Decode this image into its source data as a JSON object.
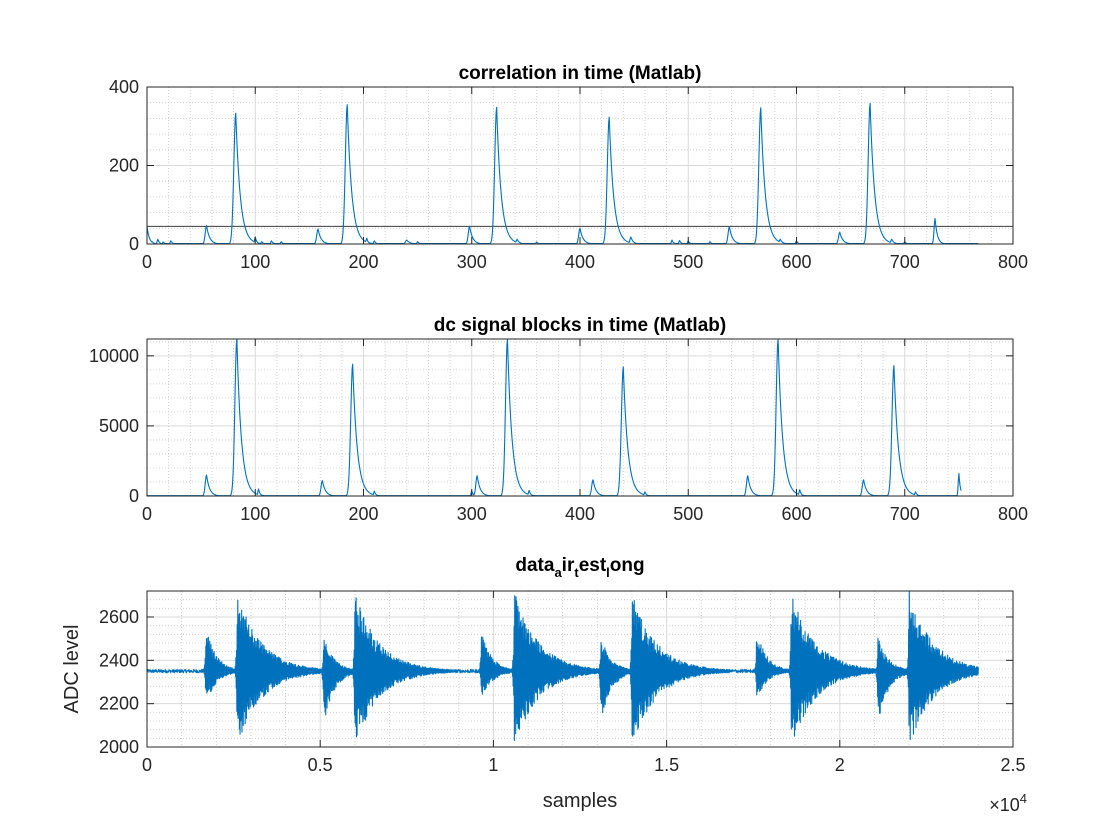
{
  "colors": {
    "line": "#0072bd",
    "axis": "#262626",
    "major_grid": "#d9d9d9",
    "minor_grid": "#c8c8c8",
    "threshold": "#3c3c3c"
  },
  "chart_data": [
    {
      "type": "line",
      "title": "correlation in time (Matlab)",
      "xlabel": "",
      "ylabel": "",
      "xlim": [
        0,
        800
      ],
      "ylim": [
        0,
        400
      ],
      "xticks": [
        0,
        100,
        200,
        300,
        400,
        500,
        600,
        700,
        800
      ],
      "yticks": [
        0,
        200,
        400
      ],
      "xtick_labels": [
        "0",
        "100",
        "200",
        "300",
        "400",
        "500",
        "600",
        "700",
        "800"
      ],
      "ytick_labels": [
        "0",
        "200",
        "400"
      ],
      "grid": true,
      "minor_grid": true,
      "threshold": 45,
      "series": [
        {
          "values_end": 768,
          "baseline": 1,
          "peaks": [
            {
              "x": 0,
              "y": 45,
              "w": 1.5
            },
            {
              "x": 5,
              "y": 6,
              "w": 1
            },
            {
              "x": 10,
              "y": 12,
              "w": 1
            },
            {
              "x": 15,
              "y": 5,
              "w": 1
            },
            {
              "x": 22,
              "y": 8,
              "w": 1
            },
            {
              "x": 55,
              "y": 47,
              "w": 2
            },
            {
              "x": 82,
              "y": 333,
              "w": 3
            },
            {
              "x": 100,
              "y": 18,
              "w": 1
            },
            {
              "x": 106,
              "y": 6,
              "w": 1
            },
            {
              "x": 115,
              "y": 8,
              "w": 1
            },
            {
              "x": 124,
              "y": 6,
              "w": 1
            },
            {
              "x": 158,
              "y": 38,
              "w": 2
            },
            {
              "x": 185,
              "y": 355,
              "w": 3
            },
            {
              "x": 203,
              "y": 15,
              "w": 1
            },
            {
              "x": 210,
              "y": 8,
              "w": 1
            },
            {
              "x": 240,
              "y": 10,
              "w": 2
            },
            {
              "x": 250,
              "y": 6,
              "w": 1
            },
            {
              "x": 298,
              "y": 45,
              "w": 2
            },
            {
              "x": 323,
              "y": 348,
              "w": 3
            },
            {
              "x": 342,
              "y": 12,
              "w": 1.5
            },
            {
              "x": 360,
              "y": 5,
              "w": 1
            },
            {
              "x": 400,
              "y": 40,
              "w": 2
            },
            {
              "x": 427,
              "y": 323,
              "w": 3
            },
            {
              "x": 447,
              "y": 18,
              "w": 1.5
            },
            {
              "x": 485,
              "y": 10,
              "w": 1
            },
            {
              "x": 492,
              "y": 9,
              "w": 1
            },
            {
              "x": 500,
              "y": 8,
              "w": 1
            },
            {
              "x": 520,
              "y": 6,
              "w": 1
            },
            {
              "x": 538,
              "y": 44,
              "w": 2
            },
            {
              "x": 567,
              "y": 347,
              "w": 3
            },
            {
              "x": 585,
              "y": 12,
              "w": 1.5
            },
            {
              "x": 600,
              "y": 8,
              "w": 1
            },
            {
              "x": 640,
              "y": 30,
              "w": 2
            },
            {
              "x": 668,
              "y": 358,
              "w": 3
            },
            {
              "x": 688,
              "y": 12,
              "w": 1.5
            },
            {
              "x": 700,
              "y": 6,
              "w": 1
            },
            {
              "x": 728,
              "y": 65,
              "w": 1.5
            }
          ]
        }
      ]
    },
    {
      "type": "line",
      "title": "dc signal blocks in time (Matlab)",
      "xlabel": "",
      "ylabel": "",
      "xlim": [
        0,
        800
      ],
      "ylim": [
        0,
        11200
      ],
      "xticks": [
        0,
        100,
        200,
        300,
        400,
        500,
        600,
        700,
        800
      ],
      "yticks": [
        0,
        5000,
        10000
      ],
      "xtick_labels": [
        "0",
        "100",
        "200",
        "300",
        "400",
        "500",
        "600",
        "700",
        "800"
      ],
      "ytick_labels": [
        "0",
        "5000",
        "10000"
      ],
      "grid": true,
      "minor_grid": true,
      "series": [
        {
          "values_end": 752,
          "baseline": 20,
          "peaks": [
            {
              "x": 55,
              "y": 1500,
              "w": 2
            },
            {
              "x": 83,
              "y": 11200,
              "w": 3
            },
            {
              "x": 103,
              "y": 500,
              "w": 1
            },
            {
              "x": 162,
              "y": 1100,
              "w": 2
            },
            {
              "x": 190,
              "y": 9400,
              "w": 3
            },
            {
              "x": 210,
              "y": 350,
              "w": 1
            },
            {
              "x": 300,
              "y": 350,
              "w": 1
            },
            {
              "x": 305,
              "y": 1450,
              "w": 2
            },
            {
              "x": 333,
              "y": 11200,
              "w": 3
            },
            {
              "x": 353,
              "y": 400,
              "w": 1
            },
            {
              "x": 412,
              "y": 1150,
              "w": 2
            },
            {
              "x": 440,
              "y": 9200,
              "w": 3
            },
            {
              "x": 460,
              "y": 300,
              "w": 1
            },
            {
              "x": 555,
              "y": 1450,
              "w": 2
            },
            {
              "x": 583,
              "y": 11200,
              "w": 3
            },
            {
              "x": 603,
              "y": 450,
              "w": 1
            },
            {
              "x": 662,
              "y": 1150,
              "w": 2
            },
            {
              "x": 690,
              "y": 9300,
              "w": 3
            },
            {
              "x": 710,
              "y": 300,
              "w": 1
            },
            {
              "x": 750,
              "y": 1600,
              "w": 1
            }
          ]
        }
      ]
    },
    {
      "type": "line",
      "title_parts": [
        {
          "text": "data",
          "sub": false
        },
        {
          "text": "a",
          "sub": true
        },
        {
          "text": "ir",
          "sub": false
        },
        {
          "text": "t",
          "sub": true
        },
        {
          "text": "est",
          "sub": false
        },
        {
          "text": "l",
          "sub": true
        },
        {
          "text": "ong",
          "sub": false
        }
      ],
      "xlabel": "samples",
      "ylabel": "ADC level",
      "xlim": [
        0,
        25000
      ],
      "ylim": [
        2000,
        2720
      ],
      "xticks": [
        0,
        5000,
        10000,
        15000,
        20000,
        25000
      ],
      "yticks": [
        2000,
        2200,
        2400,
        2600
      ],
      "xtick_labels": [
        "0",
        "0.5",
        "1",
        "1.5",
        "2",
        "2.5"
      ],
      "ytick_labels": [
        "2000",
        "2200",
        "2400",
        "2600"
      ],
      "x_exponent": {
        "base": "×10",
        "power": "4"
      },
      "grid": true,
      "minor_grid": true,
      "series": [
        {
          "x_end": 24000,
          "baseline": 2350,
          "noise": 8,
          "bursts": [
            {
              "x": 1700,
              "top": 2555,
              "bottom": 2195,
              "decay": 300
            },
            {
              "x": 2600,
              "top": 2720,
              "bottom": 2000,
              "decay": 700
            },
            {
              "x": 5100,
              "top": 2510,
              "bottom": 2095,
              "decay": 300
            },
            {
              "x": 6000,
              "top": 2720,
              "bottom": 2000,
              "decay": 700
            },
            {
              "x": 9650,
              "top": 2540,
              "bottom": 2210,
              "decay": 300
            },
            {
              "x": 10600,
              "top": 2720,
              "bottom": 2000,
              "decay": 700
            },
            {
              "x": 13100,
              "top": 2510,
              "bottom": 2095,
              "decay": 300
            },
            {
              "x": 14000,
              "top": 2720,
              "bottom": 2000,
              "decay": 700
            },
            {
              "x": 17600,
              "top": 2540,
              "bottom": 2210,
              "decay": 300
            },
            {
              "x": 18600,
              "top": 2720,
              "bottom": 2000,
              "decay": 700
            },
            {
              "x": 21100,
              "top": 2515,
              "bottom": 2095,
              "decay": 300
            },
            {
              "x": 22000,
              "top": 2720,
              "bottom": 2000,
              "decay": 700
            }
          ]
        }
      ]
    }
  ]
}
